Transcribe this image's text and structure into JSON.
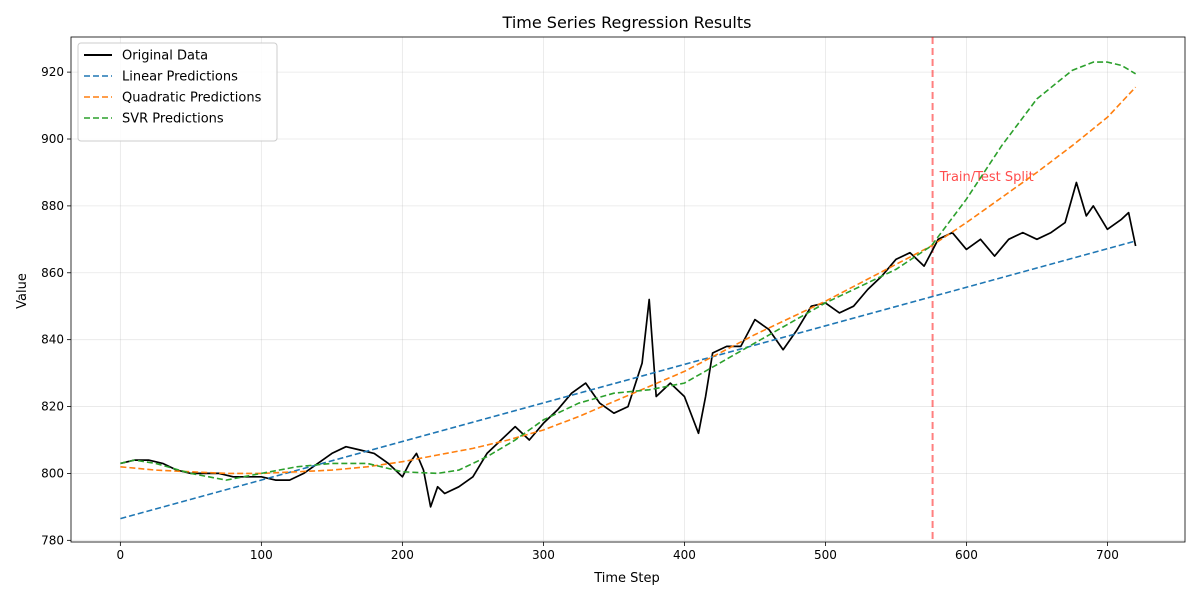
{
  "chart_data": {
    "type": "line",
    "title": "Time Series Regression Results",
    "xlabel": "Time Step",
    "ylabel": "Value",
    "xlim": [
      -35,
      755
    ],
    "ylim": [
      779.5,
      930.5
    ],
    "xticks": [
      0,
      100,
      200,
      300,
      400,
      500,
      600,
      700
    ],
    "yticks": [
      780,
      800,
      820,
      840,
      860,
      880,
      900,
      920
    ],
    "grid": true,
    "legend_position": "top-left",
    "split": {
      "x": 576,
      "label": "Train/Test Split",
      "color": "#ff0000"
    },
    "series": [
      {
        "name": "Original Data",
        "color": "#000000",
        "style": "solid",
        "x": [
          0,
          10,
          20,
          30,
          40,
          50,
          60,
          70,
          80,
          90,
          100,
          110,
          120,
          130,
          140,
          150,
          160,
          170,
          180,
          190,
          200,
          205,
          210,
          215,
          220,
          225,
          230,
          240,
          250,
          260,
          270,
          280,
          290,
          300,
          310,
          320,
          330,
          340,
          350,
          360,
          370,
          375,
          380,
          390,
          400,
          410,
          415,
          420,
          430,
          440,
          450,
          460,
          470,
          480,
          490,
          500,
          510,
          520,
          530,
          540,
          550,
          560,
          570,
          575,
          580,
          590,
          600,
          610,
          620,
          630,
          640,
          650,
          660,
          670,
          678,
          685,
          690,
          700,
          710,
          715,
          720
        ],
        "y": [
          803,
          804,
          804,
          803,
          801,
          800,
          800,
          800,
          799,
          799,
          799,
          798,
          798,
          800,
          803,
          806,
          808,
          807,
          806,
          803,
          799,
          803,
          806,
          801,
          790,
          796,
          794,
          796,
          799,
          806,
          810,
          814,
          810,
          815,
          819,
          824,
          827,
          821,
          818,
          820,
          833,
          852,
          823,
          827,
          823,
          812,
          823,
          836,
          838,
          838,
          846,
          843,
          837,
          843,
          850,
          851,
          848,
          850,
          855,
          859,
          864,
          866,
          862,
          866,
          870,
          872,
          867,
          870,
          865,
          870,
          872,
          870,
          872,
          875,
          887,
          877,
          880,
          873,
          876,
          878,
          868
        ]
      },
      {
        "name": "Linear Predictions",
        "color": "#1f77b4",
        "style": "dashed",
        "x": [
          0,
          720
        ],
        "y": [
          786.5,
          869.5
        ]
      },
      {
        "name": "Quadratic Predictions",
        "color": "#ff7f0e",
        "style": "dashed",
        "x": [
          0,
          25,
          50,
          75,
          100,
          125,
          150,
          175,
          200,
          225,
          250,
          275,
          300,
          325,
          350,
          375,
          400,
          425,
          450,
          475,
          500,
          525,
          550,
          575,
          600,
          625,
          650,
          675,
          700,
          720
        ],
        "y": [
          802,
          801,
          800.5,
          800,
          800,
          800.5,
          801,
          802,
          803.5,
          805.5,
          807.5,
          810,
          813,
          817,
          821.5,
          826,
          830.5,
          836,
          841.5,
          846.5,
          851.5,
          857,
          862.5,
          868,
          875,
          882.5,
          890,
          898,
          906.5,
          915.5
        ]
      },
      {
        "name": "SVR Predictions",
        "color": "#2ca02c",
        "style": "dashed",
        "x": [
          0,
          10,
          25,
          50,
          75,
          100,
          125,
          150,
          175,
          200,
          225,
          240,
          260,
          280,
          300,
          325,
          350,
          375,
          400,
          425,
          450,
          475,
          500,
          525,
          550,
          575,
          600,
          625,
          650,
          675,
          690,
          700,
          710,
          720
        ],
        "y": [
          803,
          804,
          803,
          800,
          798,
          800,
          802,
          803,
          803,
          800.5,
          800,
          801,
          805,
          810,
          816,
          821,
          824,
          825,
          827,
          833,
          839,
          845,
          851,
          856,
          861,
          868,
          882,
          898,
          912,
          920.5,
          923,
          923,
          922,
          919.5
        ]
      }
    ]
  }
}
